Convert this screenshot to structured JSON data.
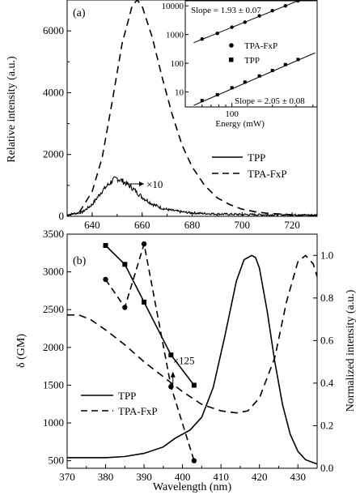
{
  "chart_data": [
    {
      "type": "line",
      "panel_label": "(a)",
      "xlabel": "",
      "ylabel": "Relative intensity (a.u.)",
      "xlim": [
        630,
        730
      ],
      "ylim": [
        0,
        7000
      ],
      "xticks": [
        640,
        660,
        680,
        700,
        720
      ],
      "yticks": [
        0,
        2000,
        4000,
        6000
      ],
      "legend_position": "center-right",
      "series": [
        {
          "name": "TPP",
          "style": "solid",
          "x": [
            630,
            636,
            640,
            644,
            648,
            650,
            652,
            656,
            660,
            664,
            668,
            672,
            676,
            680,
            685,
            690,
            700,
            710,
            720,
            730
          ],
          "y": [
            50,
            130,
            380,
            820,
            1150,
            1230,
            1150,
            920,
            620,
            400,
            260,
            190,
            140,
            110,
            90,
            75,
            60,
            50,
            45,
            40
          ]
        },
        {
          "name": "TPA-FxP",
          "style": "dashed",
          "x": [
            630,
            635,
            640,
            644,
            648,
            652,
            656,
            658,
            660,
            664,
            668,
            672,
            676,
            680,
            685,
            690,
            695,
            700,
            705,
            710,
            720,
            730
          ],
          "y": [
            20,
            150,
            800,
            1900,
            3700,
            5600,
            6800,
            7000,
            6800,
            5800,
            4500,
            3300,
            2300,
            1600,
            1000,
            600,
            380,
            230,
            150,
            100,
            50,
            30
          ]
        }
      ],
      "annotation": "×10",
      "inset": {
        "type": "scatter",
        "xscale": "log",
        "yscale": "log",
        "xlabel": "Energy (mW)",
        "xticks_labeled": [
          "100"
        ],
        "yticks": [
          "10",
          "100",
          "1000",
          "10000"
        ],
        "ylim": [
          3,
          15000
        ],
        "xlim": [
          45,
          430
        ],
        "slope_top": "Slope = 1.93 ± 0.07",
        "slope_bottom": "Slope = 2.05 ± 0.08",
        "legend": [
          {
            "name": "TPA-FxP",
            "marker": "circle"
          },
          {
            "name": "TPP",
            "marker": "square"
          }
        ],
        "series": [
          {
            "name": "TPA-FxP",
            "marker": "circle",
            "x": [
              60,
              78,
              100,
              125,
              160,
              200,
              250,
              310
            ],
            "y": [
              700,
              1100,
              1800,
              2700,
              4500,
              6800,
              10000,
              15000
            ]
          },
          {
            "name": "TPP",
            "marker": "square",
            "x": [
              60,
              78,
              100,
              125,
              160,
              200,
              250,
              310
            ],
            "y": [
              5,
              8,
              14,
              22,
              36,
              56,
              90,
              135
            ]
          }
        ]
      }
    },
    {
      "type": "line",
      "panel_label": "(b)",
      "xlabel": "Wavelength (nm)",
      "ylabel": "δ (GM)",
      "ylabel_right": "Normalized intensity (a.u.)",
      "xlim": [
        370,
        435
      ],
      "ylim": [
        400,
        3500
      ],
      "ylim_right": [
        0,
        1.1
      ],
      "xticks": [
        370,
        380,
        390,
        400,
        410,
        420,
        430
      ],
      "yticks": [
        500,
        1000,
        1500,
        2000,
        2500,
        3000,
        3500
      ],
      "yticks_right": [
        "0.0",
        "0.2",
        "0.4",
        "0.6",
        "0.8",
        "1.0"
      ],
      "annotation": "×125",
      "legend_position": "center-left",
      "series": [
        {
          "name": "TPP",
          "style": "solid",
          "axis": "right",
          "x": [
            370,
            375,
            380,
            385,
            390,
            395,
            398,
            402,
            405,
            408,
            411,
            414,
            416,
            418,
            419,
            420,
            422,
            424,
            426,
            428,
            430,
            432,
            435
          ],
          "y": [
            0.05,
            0.05,
            0.05,
            0.055,
            0.07,
            0.1,
            0.14,
            0.18,
            0.24,
            0.38,
            0.62,
            0.88,
            0.98,
            1.0,
            0.99,
            0.94,
            0.74,
            0.5,
            0.3,
            0.16,
            0.08,
            0.04,
            0.02
          ]
        },
        {
          "name": "TPA-FxP",
          "style": "dashed",
          "axis": "right",
          "x": [
            370,
            373,
            376,
            380,
            385,
            390,
            395,
            400,
            405,
            410,
            414,
            417,
            420,
            424,
            427,
            430,
            432,
            434,
            435
          ],
          "y": [
            0.72,
            0.72,
            0.7,
            0.65,
            0.58,
            0.5,
            0.43,
            0.36,
            0.3,
            0.27,
            0.26,
            0.27,
            0.33,
            0.52,
            0.78,
            0.97,
            1.0,
            0.96,
            0.9
          ]
        },
        {
          "name": "TPP δ",
          "style": "solid-markers",
          "marker": "square",
          "axis": "left",
          "x": [
            380,
            385,
            390,
            397,
            403
          ],
          "y": [
            3350,
            3100,
            2600,
            1900,
            1500
          ]
        },
        {
          "name": "TPA-FxP δ",
          "style": "dashed-markers",
          "marker": "circle",
          "axis": "left",
          "x": [
            380,
            385,
            390,
            397,
            403
          ],
          "y": [
            2900,
            2530,
            3370,
            1480,
            500
          ]
        }
      ]
    }
  ]
}
